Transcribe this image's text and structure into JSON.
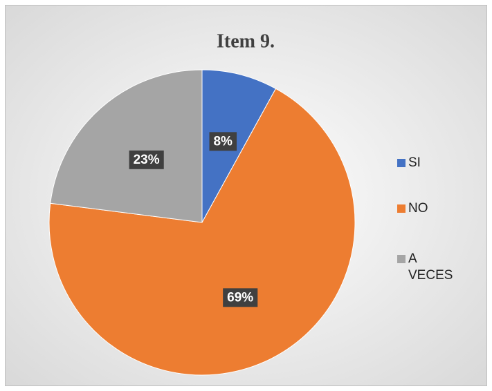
{
  "chart_data": {
    "type": "pie",
    "title": "Item 9.",
    "categories": [
      "SI",
      "NO",
      "A VECES"
    ],
    "values": [
      8,
      69,
      23
    ],
    "value_labels": [
      "8%",
      "69%",
      "23%"
    ],
    "colors": [
      "#4472c4",
      "#ed7d31",
      "#a5a5a5"
    ],
    "legend": "right"
  }
}
